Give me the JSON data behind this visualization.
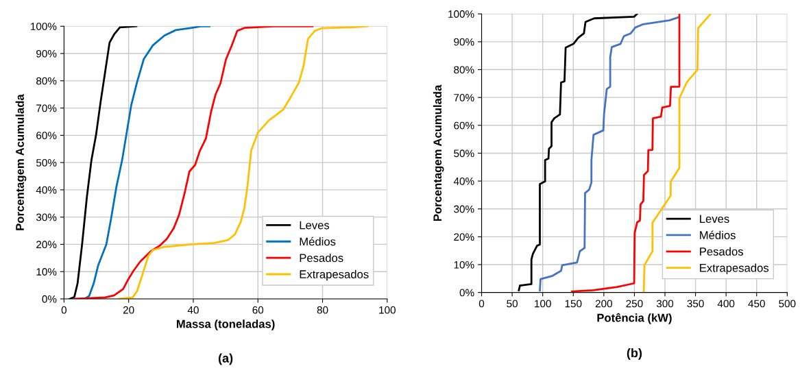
{
  "chart_data": [
    {
      "type": "line",
      "xlabel": "Massa (toneladas)",
      "ylabel": "Porcentagem Acumulada",
      "annotations": [
        "(a)"
      ],
      "xlim": [
        0,
        100
      ],
      "xticks": [
        0,
        20,
        40,
        60,
        80,
        100
      ],
      "ylim": [
        0,
        100
      ],
      "yticks": [
        {
          "value": 0,
          "label": "0%"
        },
        {
          "value": 10,
          "label": "10%"
        },
        {
          "value": 20,
          "label": "20%"
        },
        {
          "value": 30,
          "label": "30%"
        },
        {
          "value": 40,
          "label": "40%"
        },
        {
          "value": 50,
          "label": "50%"
        },
        {
          "value": 60,
          "label": "60%"
        },
        {
          "value": 70,
          "label": "70%"
        },
        {
          "value": 80,
          "label": "80%"
        },
        {
          "value": 90,
          "label": "90%"
        },
        {
          "value": 100,
          "label": "100%"
        }
      ],
      "grid": true,
      "legend": "bottom right",
      "series": [
        {
          "name": "Leves",
          "color": "#000000",
          "x": [
            1.8,
            3.2,
            4.2,
            5.6,
            7.1,
            8.5,
            9.9,
            11.3,
            12.7,
            14.1,
            15.5,
            17.3,
            19.8,
            22.4
          ],
          "values": [
            0,
            0.7,
            5.7,
            20,
            37.6,
            51,
            60,
            72,
            83,
            94,
            97,
            99.6,
            99.8,
            100
          ]
        },
        {
          "name": "Médios",
          "color": "#0070c0",
          "x": [
            6.4,
            7.8,
            9.2,
            10.6,
            13.1,
            14.5,
            16.2,
            18.0,
            19.4,
            20.8,
            22.6,
            24.7,
            27.5,
            31.1,
            34.6,
            39.5,
            42.3,
            45
          ],
          "values": [
            0,
            1.1,
            5.7,
            12.4,
            20,
            29,
            41,
            51,
            61,
            71,
            79.5,
            88,
            93,
            96.6,
            98.6,
            99.4,
            100,
            100
          ]
        },
        {
          "name": "Pesados",
          "color": "#ff0000",
          "x": [
            3.2,
            12.7,
            15.5,
            18.3,
            19.8,
            21.5,
            23.6,
            26.8,
            29.6,
            31.8,
            33.9,
            35.6,
            37.4,
            38.8,
            40.6,
            42.0,
            43.9,
            45.5,
            46.9,
            48.4,
            50.1,
            51.9,
            53.6,
            55.8,
            64.9,
            76.9
          ],
          "values": [
            0,
            0.5,
            1.3,
            3.6,
            7,
            10.3,
            13.7,
            17.4,
            19.5,
            22,
            25.8,
            30.8,
            39.2,
            46.7,
            49.2,
            54.2,
            58.8,
            68.6,
            75,
            79,
            87.8,
            92.9,
            98.3,
            99.4,
            100,
            100
          ]
        },
        {
          "name": "Extrapesados",
          "color": "#ffc000",
          "x": [
            16.9,
            21.2,
            22.6,
            24.3,
            26.1,
            27.5,
            31.1,
            39.5,
            46.6,
            50.8,
            52.9,
            54.7,
            55.8,
            56.8,
            57.9,
            60.0,
            63.5,
            64.9,
            67.8,
            69.9,
            72.7,
            74.1,
            75.5,
            77.6,
            79.8,
            89,
            93.9
          ],
          "values": [
            0,
            0.5,
            2.8,
            9,
            15.8,
            17.9,
            19.1,
            20,
            20.5,
            21.6,
            23.7,
            28.3,
            33.3,
            41.7,
            54.3,
            61,
            65.6,
            66.8,
            69.4,
            73.5,
            79.4,
            85.3,
            95.4,
            98.3,
            99.3,
            99.6,
            100
          ]
        }
      ]
    },
    {
      "type": "line",
      "xlabel": "Potência (kW)",
      "ylabel": "Porcentagem Acumulada",
      "annotations": [
        "(b)"
      ],
      "xlim": [
        0,
        500
      ],
      "xticks": [
        0,
        50,
        100,
        150,
        200,
        250,
        300,
        350,
        400,
        450,
        500
      ],
      "ylim": [
        0,
        100
      ],
      "yticks": [
        {
          "value": 0,
          "label": "0%"
        },
        {
          "value": 10,
          "label": "10%"
        },
        {
          "value": 20,
          "label": "20%"
        },
        {
          "value": 30,
          "label": "30%"
        },
        {
          "value": 40,
          "label": "40%"
        },
        {
          "value": 50,
          "label": "50%"
        },
        {
          "value": 60,
          "label": "60%"
        },
        {
          "value": 70,
          "label": "70%"
        },
        {
          "value": 80,
          "label": "80%"
        },
        {
          "value": 90,
          "label": "90%"
        },
        {
          "value": 100,
          "label": "100%"
        }
      ],
      "grid": true,
      "legend": "bottom right",
      "series": [
        {
          "name": "Leves",
          "color": "#000000",
          "x": [
            60.9,
            62.8,
            81.5,
            81.5,
            84,
            87.9,
            90.8,
            95.3,
            95.3,
            103.9,
            103.9,
            109.4,
            110.2,
            114.4,
            114.4,
            118.8,
            128.2,
            130.0,
            135.6,
            137.5,
            150.6,
            158.1,
            167.4,
            170,
            184.2,
            249.6,
            254.5
          ],
          "values": [
            0.8,
            2.5,
            3,
            11.9,
            13.9,
            15.6,
            16.8,
            17.2,
            38.9,
            39.9,
            47.5,
            48.1,
            51.6,
            52.5,
            61.1,
            62.5,
            63.9,
            75.4,
            75.8,
            87.9,
            89.3,
            91.4,
            93,
            97.1,
            98.4,
            99,
            100
          ]
        },
        {
          "name": "Médios",
          "color": "#4472c4",
          "x": [
            95.3,
            96.4,
            115.1,
            130,
            131.9,
            156.2,
            160.7,
            168.5,
            169.3,
            176,
            179.7,
            179.7,
            183.1,
            199.2,
            200.3,
            204.8,
            210.4,
            210.4,
            213,
            227.2,
            232.8,
            244,
            251.5,
            264.6,
            307.5,
            322.5
          ],
          "values": [
            0.7,
            4.8,
            5.9,
            7.8,
            9.8,
            10.8,
            14.8,
            16,
            35.7,
            36.9,
            39.5,
            47.5,
            56.6,
            58.2,
            63.9,
            73,
            73.9,
            84.4,
            88.1,
            89.2,
            92,
            93,
            95.1,
            96.3,
            97.7,
            98.8
          ]
        },
        {
          "name": "Pesados",
          "color": "#ff0000",
          "x": [
            148,
            182.4,
            221.6,
            249.6,
            250.4,
            254.5,
            259,
            260.1,
            264.6,
            265.7,
            272.1,
            272.8,
            279.5,
            280.3,
            293.4,
            295.6,
            308.3,
            309.8,
            323.6,
            323.6
          ],
          "values": [
            0.4,
            0.8,
            2,
            3.3,
            21.3,
            25.2,
            25.8,
            31.6,
            32.8,
            42.2,
            43.6,
            51.1,
            51.2,
            62.5,
            63.1,
            66.4,
            67,
            73.8,
            73.9,
            100
          ]
        },
        {
          "name": "Extrapesados",
          "color": "#ffc000",
          "x": [
            265.3,
            266.4,
            279.5,
            279.5,
            309.4,
            309.4,
            323.6,
            323.6,
            335.6,
            353.1,
            354.3,
            374.8
          ],
          "values": [
            0,
            9.8,
            14.8,
            25,
            34.8,
            39.8,
            44.7,
            69.7,
            75.4,
            79.9,
            94.9,
            100
          ]
        }
      ]
    }
  ]
}
